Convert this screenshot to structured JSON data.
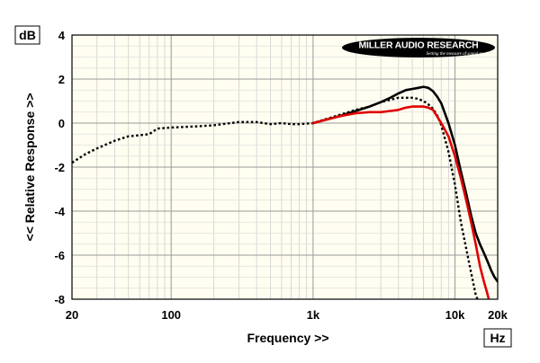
{
  "chart_data": {
    "type": "line",
    "xlabel": "Frequency >>",
    "ylabel": "<< Relative Response >>",
    "x_unit": "Hz",
    "y_unit": "dB",
    "x_scale": "log",
    "xlim": [
      20,
      20000
    ],
    "ylim": [
      -8,
      4
    ],
    "x_ticks": [
      20,
      100,
      1000,
      10000,
      20000
    ],
    "x_tick_labels": [
      "20",
      "100",
      "1k",
      "10k",
      "20k"
    ],
    "y_ticks": [
      4,
      2,
      0,
      -2,
      -4,
      -6,
      -8
    ],
    "y_tick_labels": [
      "4",
      "2",
      "0",
      "-2",
      "-4",
      "-6",
      "-8"
    ],
    "grid": true,
    "background": "#fffef0",
    "logo": {
      "name": "MILLER AUDIO RESEARCH",
      "tagline": "Setting the measure of sound quality"
    },
    "series": [
      {
        "color": "#000000",
        "style": "dotted",
        "x": [
          20,
          25,
          30,
          40,
          50,
          60,
          70,
          80,
          100,
          150,
          200,
          300,
          400,
          500,
          600,
          700,
          800,
          1000,
          1500,
          2000,
          2500,
          3000,
          4000,
          5000,
          5500,
          6000,
          6500,
          7000,
          7500,
          8000,
          9000,
          10000,
          11000,
          12000,
          13000,
          14000,
          15000,
          16000
        ],
        "y": [
          -1.8,
          -1.4,
          -1.15,
          -0.8,
          -0.6,
          -0.55,
          -0.5,
          -0.25,
          -0.2,
          -0.15,
          -0.1,
          0.05,
          0.05,
          -0.05,
          0.0,
          -0.05,
          -0.05,
          0.0,
          0.35,
          0.6,
          0.75,
          0.95,
          1.15,
          1.15,
          1.1,
          1.0,
          0.85,
          0.65,
          0.35,
          -0.1,
          -1.3,
          -2.8,
          -4.5,
          -5.7,
          -6.8,
          -7.8,
          -8.3,
          -8.8
        ]
      },
      {
        "color": "#000000",
        "style": "solid",
        "x": [
          1000,
          1500,
          2000,
          2500,
          3000,
          3500,
          4000,
          4500,
          5000,
          5500,
          6000,
          6500,
          7000,
          7500,
          8000,
          9000,
          10000,
          11000,
          12000,
          13000,
          14000,
          15000,
          16000,
          17000,
          18000,
          19000,
          20000
        ],
        "y": [
          0.0,
          0.3,
          0.55,
          0.75,
          0.95,
          1.15,
          1.35,
          1.5,
          1.55,
          1.6,
          1.65,
          1.6,
          1.45,
          1.2,
          0.9,
          0.0,
          -1.0,
          -2.2,
          -3.2,
          -4.2,
          -5.0,
          -5.5,
          -5.9,
          -6.3,
          -6.7,
          -7.0,
          -7.2
        ]
      },
      {
        "color": "#e00000",
        "style": "solid",
        "x": [
          1000,
          1500,
          2000,
          2500,
          3000,
          3500,
          4000,
          4500,
          5000,
          5500,
          6000,
          6500,
          7000,
          7500,
          8000,
          9000,
          10000,
          11000,
          12000,
          13000,
          14000,
          15000,
          16000,
          17000,
          18000
        ],
        "y": [
          0.0,
          0.3,
          0.45,
          0.5,
          0.5,
          0.55,
          0.6,
          0.7,
          0.75,
          0.75,
          0.75,
          0.7,
          0.6,
          0.3,
          0.0,
          -0.6,
          -1.5,
          -2.5,
          -3.5,
          -4.5,
          -5.5,
          -6.5,
          -7.2,
          -7.8,
          -8.5
        ]
      }
    ]
  }
}
